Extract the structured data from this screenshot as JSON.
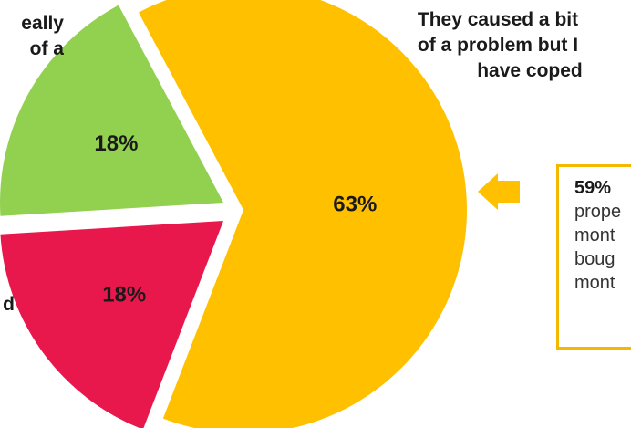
{
  "chart_data": {
    "type": "pie",
    "slices": [
      {
        "value": 63,
        "label": "63%",
        "category": "They caused a bit of a problem but I have coped",
        "color": "#FFC000"
      },
      {
        "value": 18,
        "label": "18%",
        "category": "",
        "color": "#E8184C"
      },
      {
        "value": 18,
        "label": "18%",
        "category": "",
        "color": "#92D050"
      }
    ],
    "exploded": true
  },
  "annotations": {
    "orange_category_lines": [
      "They caused a bit",
      "of a problem but I",
      "have coped"
    ],
    "green_category_lines": [
      "eally",
      "of a"
    ],
    "red_category_lines": [
      "d"
    ]
  },
  "callout": {
    "lines": [
      "59%",
      "prope",
      "mont",
      "boug",
      "mont"
    ],
    "border_color": "#F5B800",
    "arrow_color": "#FFC000"
  }
}
